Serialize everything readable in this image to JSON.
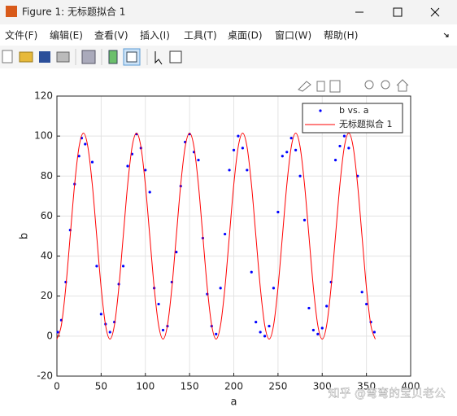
{
  "window": {
    "title": "Figure 1: 无标题拟合 1",
    "menu": [
      "文件(F)",
      "编辑(E)",
      "查看(V)",
      "插入(I)",
      "工具(T)",
      "桌面(D)",
      "窗口(W)",
      "帮助(H)"
    ],
    "watermark": "知乎 @弯弯的宝贝老公"
  },
  "chart_data": {
    "type": "scatter",
    "xlabel": "a",
    "ylabel": "b",
    "xlim": [
      0,
      400
    ],
    "xticks": [
      0,
      50,
      100,
      150,
      200,
      250,
      300,
      350,
      400
    ],
    "ylim": [
      -20,
      120
    ],
    "yticks": [
      -20,
      0,
      20,
      40,
      60,
      80,
      100,
      120
    ],
    "grid": true,
    "legend": "top-right",
    "series": [
      {
        "name": "b vs. a",
        "type": "scatter",
        "color": "#0000ff",
        "x": [
          1,
          5,
          10,
          15,
          20,
          25,
          28,
          32,
          40,
          45,
          50,
          55,
          60,
          65,
          70,
          75,
          80,
          85,
          90,
          95,
          100,
          105,
          110,
          115,
          120,
          125,
          130,
          135,
          140,
          145,
          150,
          155,
          160,
          165,
          170,
          175,
          180,
          185,
          190,
          195,
          200,
          205,
          210,
          215,
          220,
          225,
          230,
          235,
          240,
          245,
          250,
          255,
          260,
          265,
          270,
          275,
          280,
          285,
          290,
          295,
          300,
          305,
          310,
          315,
          320,
          325,
          330,
          340,
          345,
          350,
          355,
          359
        ],
        "values": [
          2,
          8,
          27,
          53,
          76,
          90,
          99,
          96,
          87,
          35,
          11,
          6,
          2,
          7,
          26,
          35,
          85,
          91,
          101,
          94,
          83,
          72,
          24,
          16,
          3,
          5,
          27,
          42,
          75,
          97,
          101,
          92,
          88,
          49,
          21,
          5,
          1,
          24,
          51,
          83,
          93,
          100,
          94,
          83,
          32,
          7,
          2,
          0,
          5,
          24,
          62,
          90,
          92,
          99,
          93,
          80,
          58,
          14,
          3,
          1,
          4,
          15,
          27,
          88,
          95,
          100,
          94,
          80,
          22,
          16,
          7,
          2
        ]
      },
      {
        "name": "无标题拟合 1",
        "type": "line",
        "color": "#ff0000",
        "x": [
          0,
          5,
          10,
          15,
          20,
          25,
          30,
          35,
          40,
          45,
          50,
          55,
          60,
          65,
          70,
          75,
          80,
          85,
          90,
          95,
          100,
          105,
          110,
          115,
          120,
          125,
          130,
          135,
          140,
          145,
          150,
          155,
          160,
          165,
          170,
          175,
          180,
          185,
          190,
          195,
          200,
          205,
          210,
          215,
          220,
          225,
          230,
          235,
          240,
          245,
          250,
          255,
          260,
          265,
          270,
          275,
          280,
          285,
          290,
          295,
          300,
          305,
          310,
          315,
          320,
          325,
          330,
          335,
          340,
          345,
          350,
          355,
          360
        ],
        "values": [
          -1.5,
          5.4,
          24.25,
          50,
          75.75,
          94.6,
          101.5,
          94.6,
          75.75,
          50,
          24.25,
          5.4,
          -1.5,
          5.4,
          24.25,
          50,
          75.75,
          94.6,
          101.5,
          94.6,
          75.75,
          50,
          24.25,
          5.4,
          -1.5,
          5.4,
          24.25,
          50,
          75.75,
          94.6,
          101.5,
          94.6,
          75.75,
          50,
          24.25,
          5.4,
          -1.5,
          5.4,
          24.25,
          50,
          75.75,
          94.6,
          101.5,
          94.6,
          75.75,
          50,
          24.25,
          5.4,
          -1.5,
          5.4,
          24.25,
          50,
          75.75,
          94.6,
          101.5,
          94.6,
          75.75,
          50,
          24.25,
          5.4,
          -1.5,
          5.4,
          24.25,
          50,
          75.75,
          94.6,
          101.5,
          94.6,
          75.75,
          50,
          24.25,
          5.4,
          -1.5
        ]
      }
    ]
  }
}
